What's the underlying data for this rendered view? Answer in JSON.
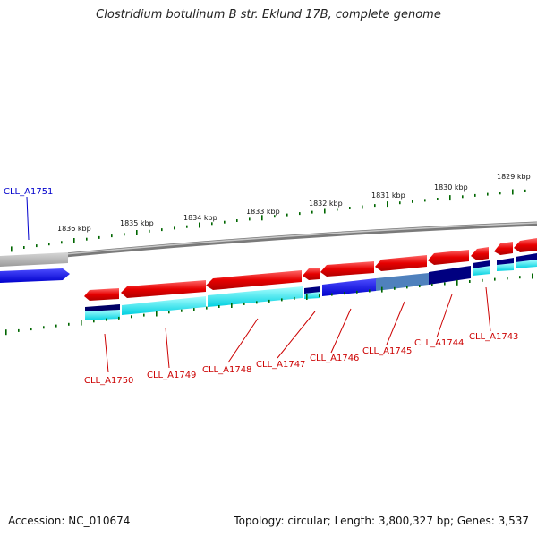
{
  "title": "Clostridium botulinum B str. Eklund 17B, complete genome",
  "footer": {
    "accession": "Accession: NC_010674",
    "summary": "Topology: circular; Length: 3,800,327 bp; Genes: 3,537"
  },
  "colors": {
    "forward_gene": "#e60000",
    "reverse_gene_highlight": "#0000ee",
    "reverse_gene_dark": "#000080",
    "reverse_gene_steel": "#4f81bd",
    "cds_track": "#00e5ee",
    "cds_track_dark": "#000066",
    "outer_context_gene": "#b0b0b0",
    "backbone": "#808080",
    "tick": "#006600",
    "forward_label": "#cc0000",
    "reverse_label": "#0000cc"
  },
  "ticks": [
    {
      "label": "1836 kbp"
    },
    {
      "label": "1835 kbp"
    },
    {
      "label": "1834 kbp"
    },
    {
      "label": "1833 kbp"
    },
    {
      "label": "1832 kbp"
    },
    {
      "label": "1831 kbp"
    },
    {
      "label": "1830 kbp"
    },
    {
      "label": "1829 kbp"
    }
  ],
  "genes": [
    {
      "label": "CLL_A1751",
      "strand": "reverse"
    },
    {
      "label": "CLL_A1750",
      "strand": "forward"
    },
    {
      "label": "CLL_A1749",
      "strand": "forward"
    },
    {
      "label": "CLL_A1748",
      "strand": "forward"
    },
    {
      "label": "CLL_A1747",
      "strand": "forward"
    },
    {
      "label": "CLL_A1746",
      "strand": "forward"
    },
    {
      "label": "CLL_A1745",
      "strand": "forward"
    },
    {
      "label": "CLL_A1744",
      "strand": "forward"
    },
    {
      "label": "CLL_A1743",
      "strand": "forward"
    }
  ]
}
